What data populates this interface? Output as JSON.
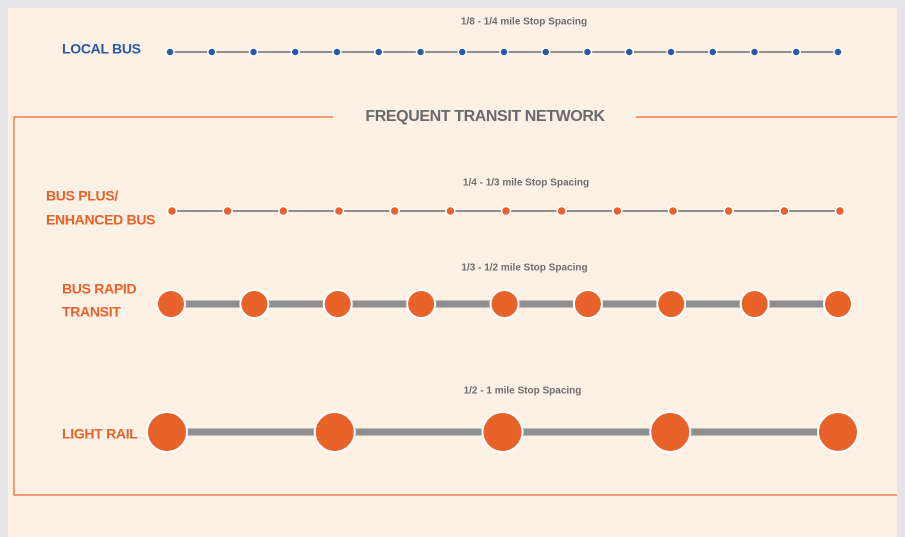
{
  "section_title": "FREQUENT TRANSIT NETWORK",
  "rows": [
    {
      "label": [
        "LOCAL BUS"
      ],
      "spacing": "1/8 - 1/4 mile Stop Spacing"
    },
    {
      "label": [
        "BUS PLUS/",
        "ENHANCED BUS"
      ],
      "spacing": "1/4 - 1/3 mile Stop Spacing"
    },
    {
      "label": [
        "BUS RAPID",
        "TRANSIT"
      ],
      "spacing": "1/3 - 1/2 mile Stop Spacing"
    },
    {
      "label": [
        "LIGHT RAIL"
      ],
      "spacing": "1/2 - 1 mile Stop Spacing"
    }
  ]
}
